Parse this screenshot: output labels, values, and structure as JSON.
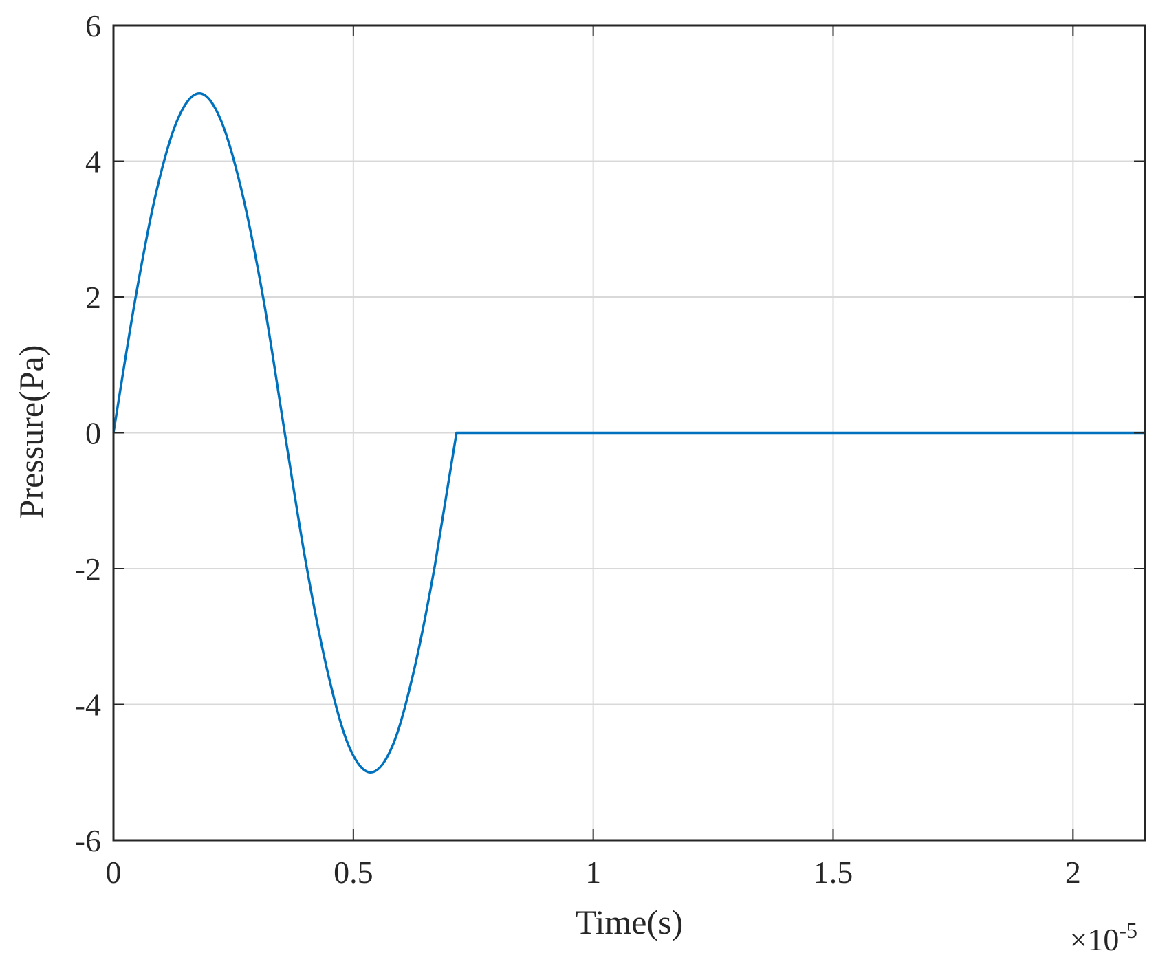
{
  "chart_data": {
    "type": "line",
    "title": "",
    "xlabel": "Time(s)",
    "ylabel": "Pressure(Pa)",
    "x_exponent_label": {
      "prefix": "×10",
      "power": "-5"
    },
    "x_scale_factor": 1e-05,
    "xlim": [
      0,
      2.15
    ],
    "ylim": [
      -6,
      6
    ],
    "xticks": [
      0,
      0.5,
      1,
      1.5,
      2
    ],
    "xtick_labels": [
      "0",
      "0.5",
      "1",
      "1.5",
      "2"
    ],
    "yticks": [
      -6,
      -4,
      -2,
      0,
      2,
      4,
      6
    ],
    "ytick_labels": [
      "-6",
      "-4",
      "-2",
      "0",
      "2",
      "4",
      "6"
    ],
    "grid": true,
    "colors": {
      "line": "#0072BD",
      "grid": "#d9d9d9",
      "axes": "#262626"
    },
    "series": [
      {
        "x": [
          0,
          0.045,
          0.089,
          0.134,
          0.179,
          0.223,
          0.268,
          0.313,
          0.357,
          0.402,
          0.447,
          0.491,
          0.536,
          0.581,
          0.625,
          0.67,
          0.715,
          0.72,
          2.15
        ],
        "y": [
          0,
          1.95,
          3.54,
          4.62,
          5.0,
          4.62,
          3.54,
          1.95,
          0.0,
          -1.95,
          -3.54,
          -4.62,
          -5.0,
          -4.62,
          -3.54,
          -1.95,
          0.0,
          0.0,
          0.0
        ]
      }
    ]
  }
}
